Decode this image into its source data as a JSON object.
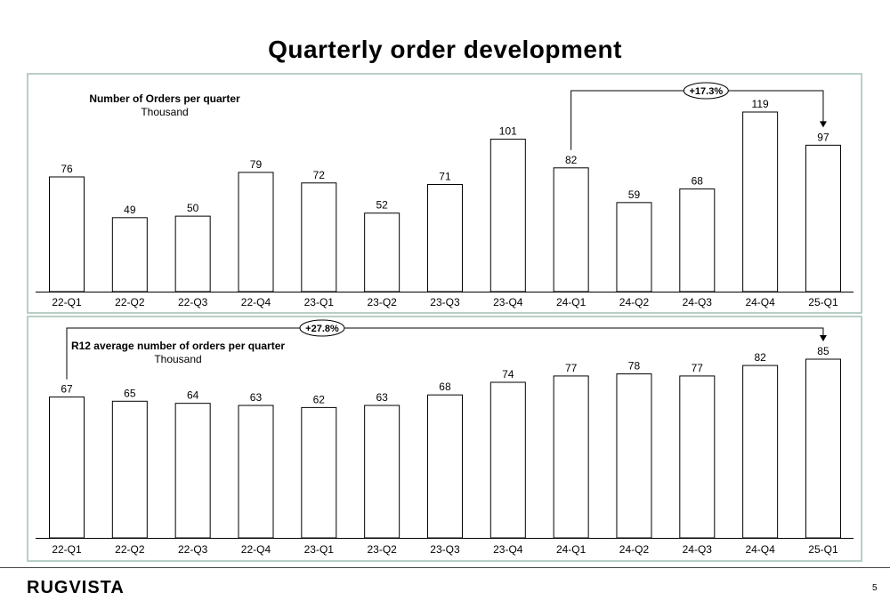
{
  "page": {
    "title": "Quarterly order development",
    "logo": "RUGVISTA",
    "page_number": "5"
  },
  "chart_data": [
    {
      "type": "bar",
      "title": "Number of Orders per quarter",
      "subtitle": "Thousand",
      "categories": [
        "22-Q1",
        "22-Q2",
        "22-Q3",
        "22-Q4",
        "23-Q1",
        "23-Q2",
        "23-Q3",
        "23-Q4",
        "24-Q1",
        "24-Q2",
        "24-Q3",
        "24-Q4",
        "25-Q1"
      ],
      "values": [
        76,
        49,
        50,
        79,
        72,
        52,
        71,
        101,
        82,
        59,
        68,
        119,
        97
      ],
      "ylim": [
        0,
        119
      ],
      "annotation": {
        "label": "+17.3%",
        "from": "24-Q1",
        "to": "25-Q1"
      }
    },
    {
      "type": "bar",
      "title": "R12 average number of orders per quarter",
      "subtitle": "Thousand",
      "categories": [
        "22-Q1",
        "22-Q2",
        "22-Q3",
        "22-Q4",
        "23-Q1",
        "23-Q2",
        "23-Q3",
        "23-Q4",
        "24-Q1",
        "24-Q2",
        "24-Q3",
        "24-Q4",
        "25-Q1"
      ],
      "values": [
        67,
        65,
        64,
        63,
        62,
        63,
        68,
        74,
        77,
        78,
        77,
        82,
        85
      ],
      "ylim": [
        0,
        85
      ],
      "annotation": {
        "label": "+27.8%",
        "from": "22-Q1",
        "to": "25-Q1"
      }
    }
  ]
}
